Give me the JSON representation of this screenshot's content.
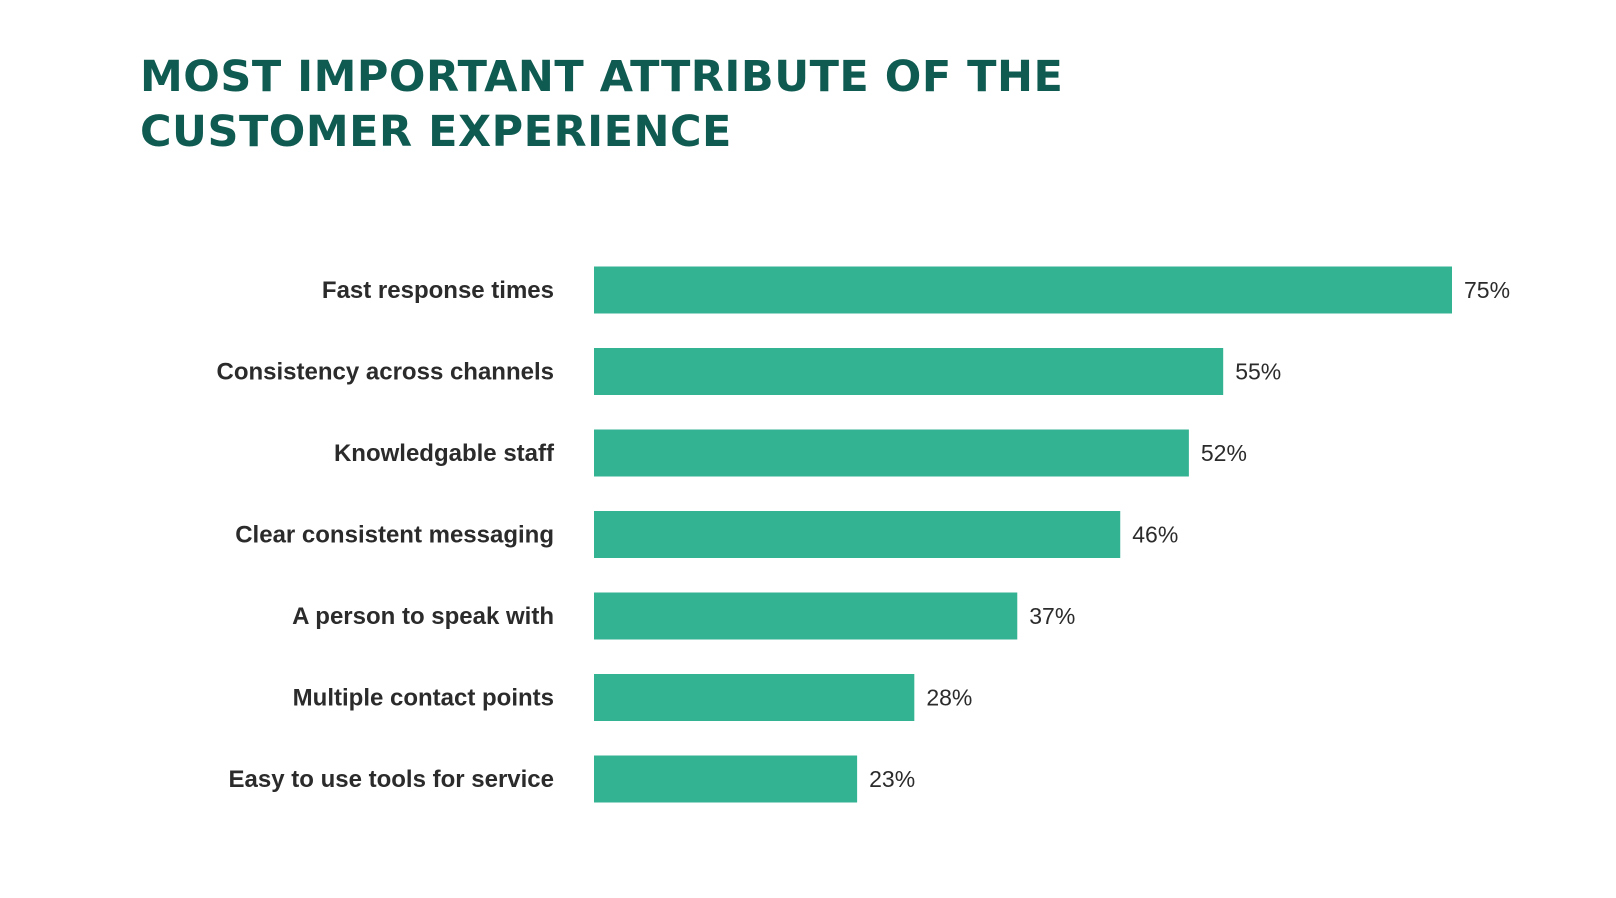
{
  "chart_data": {
    "type": "bar",
    "orientation": "horizontal",
    "title": "MOST IMPORTANT ATTRIBUTE OF THE CUSTOMER EXPERIENCE",
    "title_lines": [
      "MOST IMPORTANT ATTRIBUTE OF THE",
      "CUSTOMER EXPERIENCE"
    ],
    "categories": [
      "Fast response times",
      "Consistency across channels",
      "Knowledgable staff",
      "Clear consistent messaging",
      "A person to speak with",
      "Multiple contact points",
      "Easy to use tools for service"
    ],
    "values": [
      75,
      55,
      52,
      46,
      37,
      28,
      23
    ],
    "value_labels": [
      "75%",
      "55%",
      "52%",
      "46%",
      "37%",
      "28%",
      "23%"
    ],
    "xlim": [
      0,
      75
    ],
    "grid": false,
    "legend": "none",
    "colors": {
      "bar": "#34b393",
      "title": "#0f5b52",
      "text": "#2b2b2b"
    }
  }
}
